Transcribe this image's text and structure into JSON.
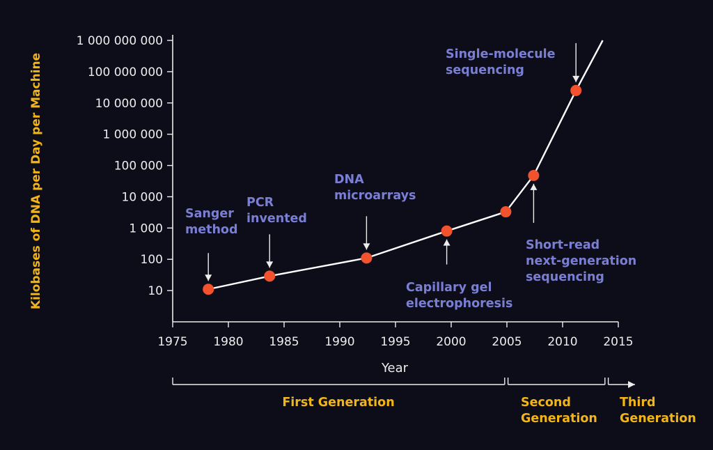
{
  "chart_data": {
    "type": "line",
    "ylabel": "Kilobases of DNA per Day per Machine",
    "xlabel": "Year",
    "y_scale": "log",
    "ylim": [
      1,
      1000000000
    ],
    "xlim": [
      1975,
      2015
    ],
    "yticks": [
      10,
      100,
      1000,
      10000,
      100000,
      1000000,
      10000000,
      100000000,
      1000000000
    ],
    "ytick_labels": [
      "10",
      "100",
      "1 000",
      "10 000",
      "100 000",
      "1 000 000",
      "10 000 000",
      "100 000 000",
      "1 000 000 000"
    ],
    "xticks": [
      1975,
      1980,
      1985,
      1990,
      1995,
      2000,
      2005,
      2010,
      2015
    ],
    "xtick_labels": [
      "1975",
      "1980",
      "1985",
      "1990",
      "1995",
      "2000",
      "2005",
      "2010",
      "2015"
    ],
    "series": [
      {
        "points": [
          {
            "x": 1978.2,
            "y": 11
          },
          {
            "x": 1983.7,
            "y": 29
          },
          {
            "x": 1992.4,
            "y": 110
          },
          {
            "x": 1999.6,
            "y": 800
          },
          {
            "x": 2004.9,
            "y": 3300
          },
          {
            "x": 2007.4,
            "y": 48000
          },
          {
            "x": 2011.2,
            "y": 25000000
          }
        ],
        "line_end": {
          "x": 2013.6,
          "y": 1000000000
        },
        "line_color": "#ffffff",
        "marker_color": "#f2522e"
      }
    ],
    "annotations": [
      {
        "lines": [
          "Sanger",
          "method"
        ],
        "x": 1978.2,
        "y": 11
      },
      {
        "lines": [
          "PCR",
          "invented"
        ],
        "x": 1983.7,
        "y": 29
      },
      {
        "lines": [
          "DNA",
          "microarrays"
        ],
        "x": 1992.4,
        "y": 110
      },
      {
        "lines": [
          "Capillary gel",
          "electrophoresis"
        ],
        "x": 1999.6,
        "y": 800
      },
      {
        "lines": [
          "Short-read",
          "next-generation",
          "sequencing"
        ],
        "x": 2007.4,
        "y": 48000
      },
      {
        "lines": [
          "Single-molecule",
          "sequencing"
        ],
        "x": 2011.2,
        "y": 25000000
      }
    ],
    "generations": [
      {
        "lines": [
          "First Generation"
        ],
        "from": 1975,
        "to": 2004.8
      },
      {
        "lines": [
          "Second",
          "Generation"
        ],
        "from": 2005.1,
        "to": 2013.8
      },
      {
        "lines": [
          "Third",
          "Generation"
        ],
        "from": 2014.1,
        "to": 2016.5,
        "open_ended": true
      }
    ],
    "colors": {
      "background": "#0d0d1a",
      "axis": "#ededed",
      "annotation_text": "#7b7fd4",
      "label_highlight": "#f2b518",
      "marker": "#f2522e",
      "line": "#ffffff"
    },
    "grid": false,
    "legend": "none"
  }
}
